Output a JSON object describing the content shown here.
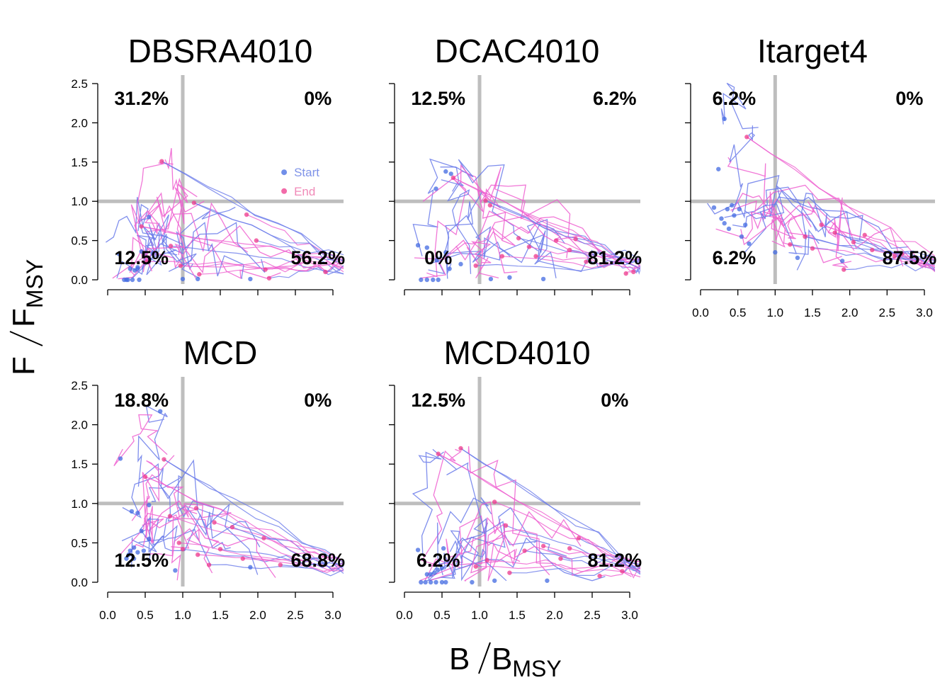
{
  "figure": {
    "ylabel_main": "F",
    "ylabel_sub": "FMSY",
    "xlabel_main": "B",
    "xlabel_sub": "BMSY"
  },
  "legend": {
    "start_label": "Start",
    "end_label": "End",
    "start_color": "#4169E1",
    "end_color": "#EE3A8C"
  },
  "colors": {
    "reference_line": "#BEBEBE",
    "trajectory_blue": "#6A7BEA",
    "trajectory_pink": "#EE5FD0",
    "axis": "#000000"
  },
  "chart_data": [
    {
      "type": "scatter",
      "title": "DBSRA4010",
      "xlim": [
        0,
        3
      ],
      "ylim": [
        0,
        2.5
      ],
      "x_ticks": [
        "",
        "",
        "",
        "",
        "",
        "",
        ""
      ],
      "y_ticks": [
        "0.0",
        "0.5",
        "1.0",
        "1.5",
        "2.0",
        "2.5"
      ],
      "reference_lines": {
        "x": 1,
        "y": 1
      },
      "quadrant_percentages": {
        "top_left": "31.2%",
        "top_right": "0%",
        "bottom_left": "12.5%",
        "bottom_right": "56.2%"
      },
      "show_legend": true,
      "series": [
        {
          "name": "Start",
          "points": [
            [
              0.15,
              0.33
            ],
            [
              0.22,
              0.0
            ],
            [
              0.27,
              0.0
            ],
            [
              0.33,
              0.0
            ],
            [
              0.42,
              0.0
            ],
            [
              0.3,
              0.14
            ],
            [
              0.36,
              0.12
            ],
            [
              0.4,
              0.14
            ],
            [
              0.45,
              0.36
            ],
            [
              0.55,
              0.8
            ],
            [
              0.6,
              0.34
            ],
            [
              0.4,
              0.16
            ],
            [
              1.2,
              0.01
            ],
            [
              1.0,
              0.01
            ],
            [
              1.9,
              0.01
            ],
            [
              0.25,
              0.0
            ]
          ]
        },
        {
          "name": "End",
          "points": [
            [
              0.45,
              0.68
            ],
            [
              0.72,
              1.51
            ],
            [
              0.97,
              0.18
            ],
            [
              1.15,
              0.98
            ],
            [
              1.85,
              0.83
            ],
            [
              1.98,
              0.5
            ],
            [
              2.1,
              0.13
            ],
            [
              2.15,
              0.02
            ],
            [
              0.52,
              0.23
            ],
            [
              0.84,
              0.43
            ],
            [
              1.22,
              0.07
            ],
            [
              2.9,
              0.1
            ]
          ]
        }
      ]
    },
    {
      "type": "scatter",
      "title": "DCAC4010",
      "xlim": [
        0,
        3
      ],
      "ylim": [
        0,
        2.5
      ],
      "x_ticks": [
        "",
        "",
        "",
        "",
        "",
        "",
        ""
      ],
      "y_ticks": [
        "",
        "",
        "",
        "",
        "",
        ""
      ],
      "reference_lines": {
        "x": 1,
        "y": 1
      },
      "quadrant_percentages": {
        "top_left": "12.5%",
        "top_right": "6.2%",
        "bottom_left": "0%",
        "bottom_right": "81.2%"
      },
      "show_legend": false,
      "series": [
        {
          "name": "Start",
          "points": [
            [
              0.18,
              0.44
            ],
            [
              0.22,
              0.0
            ],
            [
              0.3,
              0.0
            ],
            [
              0.38,
              0.0
            ],
            [
              0.45,
              0.0
            ],
            [
              0.42,
              1.16
            ],
            [
              0.55,
              1.38
            ],
            [
              0.62,
              1.35
            ],
            [
              0.43,
              0.25
            ],
            [
              0.55,
              0.35
            ],
            [
              0.6,
              0.14
            ],
            [
              1.15,
              0.01
            ],
            [
              1.85,
              0.01
            ],
            [
              0.3,
              0.41
            ],
            [
              0.75,
              0.2
            ],
            [
              1.4,
              0.03
            ]
          ]
        },
        {
          "name": "End",
          "points": [
            [
              0.65,
              1.3
            ],
            [
              1.08,
              1.01
            ],
            [
              1.14,
              0.95
            ],
            [
              1.52,
              0.53
            ],
            [
              2.02,
              0.5
            ],
            [
              2.28,
              0.52
            ],
            [
              1.66,
              0.42
            ],
            [
              2.42,
              0.23
            ],
            [
              2.95,
              0.08
            ],
            [
              3.05,
              0.1
            ],
            [
              1.3,
              0.3
            ],
            [
              0.95,
              0.18
            ],
            [
              1.75,
              0.3
            ],
            [
              2.2,
              0.38
            ]
          ]
        }
      ]
    },
    {
      "type": "scatter",
      "title": "Itarget4",
      "xlim": [
        0,
        3
      ],
      "ylim": [
        0,
        2.5
      ],
      "x_ticks": [
        "0.0",
        "0.5",
        "1.0",
        "1.5",
        "2.0",
        "2.5",
        "3.0"
      ],
      "y_ticks": [
        "",
        "",
        "",
        "",
        "",
        ""
      ],
      "reference_lines": {
        "x": 1,
        "y": 1
      },
      "quadrant_percentages": {
        "top_left": "6.2%",
        "top_right": "0%",
        "bottom_left": "6.2%",
        "bottom_right": "87.5%"
      },
      "show_legend": false,
      "series": [
        {
          "name": "Start",
          "points": [
            [
              0.32,
              2.05
            ],
            [
              0.24,
              1.41
            ],
            [
              0.18,
              0.92
            ],
            [
              0.28,
              0.78
            ],
            [
              0.32,
              0.72
            ],
            [
              0.38,
              0.65
            ],
            [
              0.36,
              0.9
            ],
            [
              0.42,
              0.95
            ],
            [
              0.52,
              0.9
            ],
            [
              0.6,
              0.7
            ],
            [
              0.65,
              0.46
            ],
            [
              0.55,
              0.55
            ],
            [
              0.45,
              0.82
            ],
            [
              1.0,
              0.35
            ],
            [
              1.3,
              0.28
            ],
            [
              1.9,
              0.24
            ]
          ]
        },
        {
          "name": "End",
          "points": [
            [
              0.62,
              1.82
            ],
            [
              1.4,
              0.55
            ],
            [
              1.62,
              0.7
            ],
            [
              1.8,
              0.6
            ],
            [
              2.2,
              0.57
            ],
            [
              1.92,
              0.13
            ],
            [
              2.3,
              0.38
            ],
            [
              2.6,
              0.3
            ],
            [
              2.7,
              0.33
            ],
            [
              1.2,
              0.45
            ],
            [
              1.5,
              0.4
            ],
            [
              2.05,
              0.48
            ]
          ]
        }
      ]
    },
    {
      "type": "scatter",
      "title": "MCD",
      "xlim": [
        0,
        3
      ],
      "ylim": [
        0,
        2.5
      ],
      "x_ticks": [
        "0.0",
        "0.5",
        "1.0",
        "1.5",
        "2.0",
        "2.5",
        "3.0"
      ],
      "y_ticks": [
        "0.0",
        "0.5",
        "1.0",
        "1.5",
        "2.0",
        "2.5"
      ],
      "reference_lines": {
        "x": 1,
        "y": 1
      },
      "quadrant_percentages": {
        "top_left": "18.8%",
        "top_right": "0%",
        "bottom_left": "12.5%",
        "bottom_right": "68.8%"
      },
      "show_legend": false,
      "series": [
        {
          "name": "Start",
          "points": [
            [
              0.7,
              2.17
            ],
            [
              0.17,
              1.57
            ],
            [
              0.32,
              0.9
            ],
            [
              0.4,
              0.88
            ],
            [
              0.55,
              0.98
            ],
            [
              0.45,
              0.65
            ],
            [
              0.55,
              0.55
            ],
            [
              0.25,
              0.3
            ],
            [
              0.3,
              0.4
            ],
            [
              0.35,
              0.44
            ],
            [
              0.4,
              0.38
            ],
            [
              0.48,
              0.4
            ],
            [
              0.35,
              0.3
            ],
            [
              0.9,
              0.15
            ],
            [
              1.9,
              0.19
            ],
            [
              0.28,
              0.35
            ]
          ]
        },
        {
          "name": "End",
          "points": [
            [
              0.5,
              1.34
            ],
            [
              0.75,
              1.56
            ],
            [
              0.83,
              0.84
            ],
            [
              1.18,
              0.94
            ],
            [
              1.42,
              0.76
            ],
            [
              1.66,
              0.7
            ],
            [
              2.08,
              0.56
            ],
            [
              1.0,
              0.42
            ],
            [
              1.2,
              0.35
            ],
            [
              1.5,
              0.42
            ],
            [
              1.8,
              0.3
            ],
            [
              2.3,
              0.22
            ],
            [
              0.95,
              0.5
            ],
            [
              1.35,
              0.22
            ]
          ]
        }
      ]
    },
    {
      "type": "scatter",
      "title": "MCD4010",
      "xlim": [
        0,
        3
      ],
      "ylim": [
        0,
        2.5
      ],
      "x_ticks": [
        "0.0",
        "0.5",
        "1.0",
        "1.5",
        "2.0",
        "2.5",
        "3.0"
      ],
      "y_ticks": [
        "",
        "",
        "",
        "",
        "",
        ""
      ],
      "reference_lines": {
        "x": 1,
        "y": 1
      },
      "quadrant_percentages": {
        "top_left": "12.5%",
        "top_right": "0%",
        "bottom_left": "6.2%",
        "bottom_right": "81.2%"
      },
      "show_legend": false,
      "series": [
        {
          "name": "Start",
          "points": [
            [
              0.18,
              0.41
            ],
            [
              0.3,
              0.1
            ],
            [
              0.35,
              0.1
            ],
            [
              0.4,
              0.12
            ],
            [
              0.44,
              0.16
            ],
            [
              0.5,
              0.18
            ],
            [
              0.52,
              0.43
            ],
            [
              0.22,
              0.0
            ],
            [
              0.28,
              0.0
            ],
            [
              0.35,
              0.0
            ],
            [
              0.42,
              0.0
            ],
            [
              0.5,
              0.0
            ],
            [
              0.55,
              0.0
            ],
            [
              0.9,
              0.0
            ],
            [
              1.2,
              0.02
            ],
            [
              1.9,
              0.02
            ]
          ]
        },
        {
          "name": "End",
          "points": [
            [
              0.45,
              1.63
            ],
            [
              0.75,
              1.7
            ],
            [
              1.2,
              1.02
            ],
            [
              1.35,
              0.72
            ],
            [
              1.85,
              0.46
            ],
            [
              2.08,
              0.3
            ],
            [
              2.2,
              0.43
            ],
            [
              2.32,
              0.56
            ],
            [
              2.6,
              0.08
            ],
            [
              2.9,
              0.14
            ],
            [
              1.1,
              0.28
            ],
            [
              1.6,
              0.4
            ],
            [
              0.95,
              0.2
            ],
            [
              1.4,
              0.12
            ]
          ]
        }
      ]
    }
  ]
}
